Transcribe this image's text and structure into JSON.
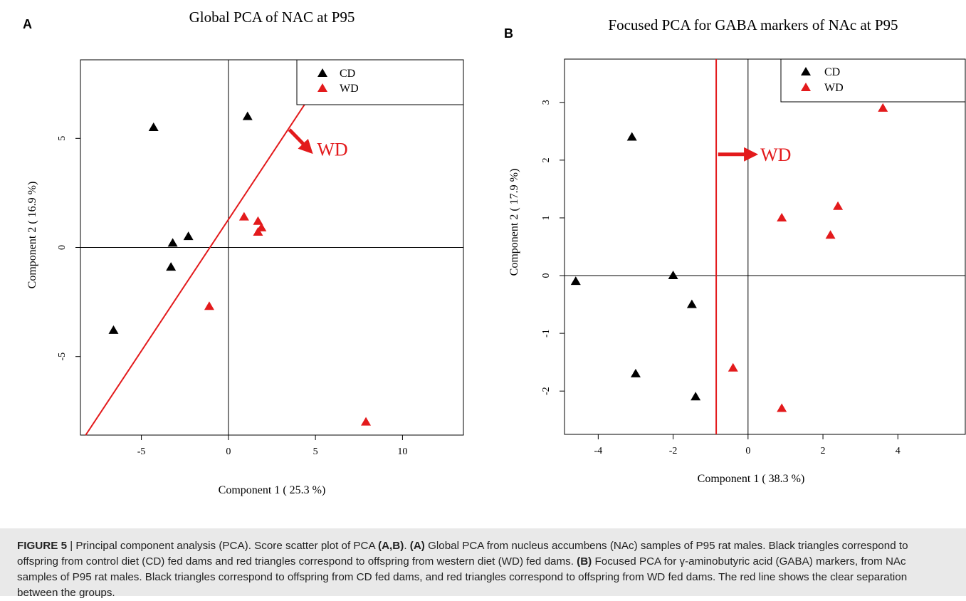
{
  "panels": {
    "A": {
      "letter": "A",
      "title": "Global PCA of NAC at P95",
      "xlabel": "Component 1 ( 25.3 %)",
      "ylabel": "Component 2 ( 16.9 %)",
      "arrow_label": "WD",
      "legend": [
        "CD",
        "WD"
      ]
    },
    "B": {
      "letter": "B",
      "title": "Focused PCA  for GABA markers of NAc at P95",
      "xlabel": "Component 1 ( 38.3 %)",
      "ylabel": "Component 2 ( 17.9 %)",
      "arrow_label": "WD",
      "legend": [
        "CD",
        "WD"
      ]
    }
  },
  "caption": {
    "label": "FIGURE 5",
    "parts": [
      {
        "t": " | Principal component analysis (PCA). Score scatter plot of PCA ",
        "b": false
      },
      {
        "t": "(A,B)",
        "b": true
      },
      {
        "t": ". ",
        "b": false
      },
      {
        "t": "(A)",
        "b": true
      },
      {
        "t": " Global PCA from nucleus accumbens (NAc) samples of P95 rat males. Black triangles correspond to offspring from control diet (CD) fed dams and red triangles correspond to offspring from western diet (WD) fed dams. ",
        "b": false
      },
      {
        "t": "(B)",
        "b": true
      },
      {
        "t": " Focused PCA for γ-aminobutyric acid (GABA) markers, from NAc samples of P95 rat males. Black triangles correspond to offspring from CD fed dams, and red triangles correspond to offspring from WD fed dams. The red line shows the clear separation between the groups.",
        "b": false
      }
    ]
  },
  "colors": {
    "CD": "#000000",
    "WD": "#e31a1c",
    "caption_bg": "#e9e9e9"
  },
  "chart_data": [
    {
      "panel": "A",
      "type": "scatter",
      "title": "Global PCA of NAC at P95",
      "xlabel": "Component 1 ( 25.3 %)",
      "ylabel": "Component 2 ( 16.9 %)",
      "xlim": [
        -8.5,
        13.5
      ],
      "ylim": [
        -8.6,
        8.6
      ],
      "xticks": [
        -5,
        0,
        5,
        10
      ],
      "yticks": [
        -5,
        0,
        5
      ],
      "grid": false,
      "legend_position": "top-right",
      "series": [
        {
          "name": "CD",
          "marker": "triangle",
          "x": [
            -4.3,
            1.1,
            -3.2,
            -2.3,
            -3.3,
            -6.6
          ],
          "y": [
            5.5,
            6.0,
            0.2,
            0.5,
            -0.9,
            -3.8
          ]
        },
        {
          "name": "WD",
          "marker": "triangle",
          "x": [
            0.9,
            1.7,
            1.9,
            1.7,
            -1.1,
            7.9
          ],
          "y": [
            1.4,
            1.2,
            0.9,
            0.7,
            -2.7,
            -8.0
          ]
        }
      ],
      "separation_line": {
        "x1": -8.2,
        "y1": -8.6,
        "x2": 4.5,
        "y2": 6.7
      },
      "annotation": {
        "text": "WD",
        "arrow_from": [
          3.5,
          5.4
        ],
        "arrow_to": [
          4.6,
          4.5
        ]
      }
    },
    {
      "panel": "B",
      "type": "scatter",
      "title": "Focused PCA  for GABA markers of NAc at P95",
      "xlabel": "Component 1 ( 38.3 %)",
      "ylabel": "Component 2 ( 17.9 %)",
      "xlim": [
        -4.9,
        5.8
      ],
      "ylim": [
        -2.75,
        3.75
      ],
      "xticks": [
        -4,
        -2,
        0,
        2,
        4
      ],
      "yticks": [
        -2,
        -1,
        0,
        1,
        2,
        3
      ],
      "grid": false,
      "legend_position": "top-right",
      "series": [
        {
          "name": "CD",
          "marker": "triangle",
          "x": [
            -3.1,
            -4.6,
            -2.0,
            -1.5,
            -3.0,
            -1.4
          ],
          "y": [
            2.4,
            -0.1,
            0.0,
            -0.5,
            -1.7,
            -2.1
          ]
        },
        {
          "name": "WD",
          "marker": "triangle",
          "x": [
            3.6,
            0.9,
            2.4,
            2.2,
            -0.4,
            0.9
          ],
          "y": [
            2.9,
            1.0,
            1.2,
            0.7,
            -1.6,
            -2.3
          ]
        }
      ],
      "separation_line": {
        "x": -0.85
      },
      "annotation": {
        "text": "WD",
        "arrow_from": [
          -0.8,
          2.1
        ],
        "arrow_to": [
          0.1,
          2.1
        ]
      }
    }
  ]
}
